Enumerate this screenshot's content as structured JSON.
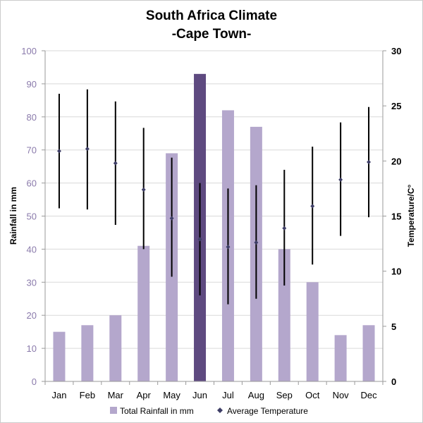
{
  "chart_data": {
    "type": "bar",
    "title_line1": "South Africa Climate",
    "title_line2": "-Cape Town-",
    "categories": [
      "Jan",
      "Feb",
      "Mar",
      "Apr",
      "May",
      "Jun",
      "Jul",
      "Aug",
      "Sep",
      "Oct",
      "Nov",
      "Dec"
    ],
    "ylabel_left": "Rainfall in mm",
    "ylabel_right": "Temperature/C°",
    "ylim_left": [
      0,
      100
    ],
    "yticks_left": [
      "0",
      "10",
      "20",
      "30",
      "40",
      "50",
      "60",
      "70",
      "80",
      "90",
      "100"
    ],
    "ylim_right": [
      0,
      30
    ],
    "yticks_right": [
      "0",
      "5",
      "10",
      "15",
      "20",
      "25",
      "30"
    ],
    "grid": true,
    "legend_position": "bottom",
    "series": [
      {
        "name": "Total Rainfall in mm",
        "kind": "bar",
        "values": [
          15,
          17,
          20,
          41,
          69,
          93,
          82,
          77,
          40,
          30,
          14,
          17
        ],
        "color": "#b4a7cc",
        "highlight_index": 5,
        "highlight_color": "#5e4a80"
      },
      {
        "name": "Average Temperature",
        "kind": "point-with-range",
        "values": [
          20.9,
          21.1,
          19.8,
          17.4,
          14.8,
          12.9,
          12.2,
          12.6,
          13.9,
          15.9,
          18.3,
          19.9
        ],
        "low": [
          15.7,
          15.6,
          14.2,
          12.0,
          9.5,
          7.8,
          7.0,
          7.5,
          8.7,
          10.6,
          13.2,
          14.9
        ],
        "high": [
          26.1,
          26.5,
          25.4,
          23.0,
          20.3,
          18.0,
          17.5,
          17.8,
          19.2,
          21.3,
          23.5,
          24.9
        ],
        "marker_color": "#3d3d66",
        "range_color": "#000000"
      }
    ]
  }
}
